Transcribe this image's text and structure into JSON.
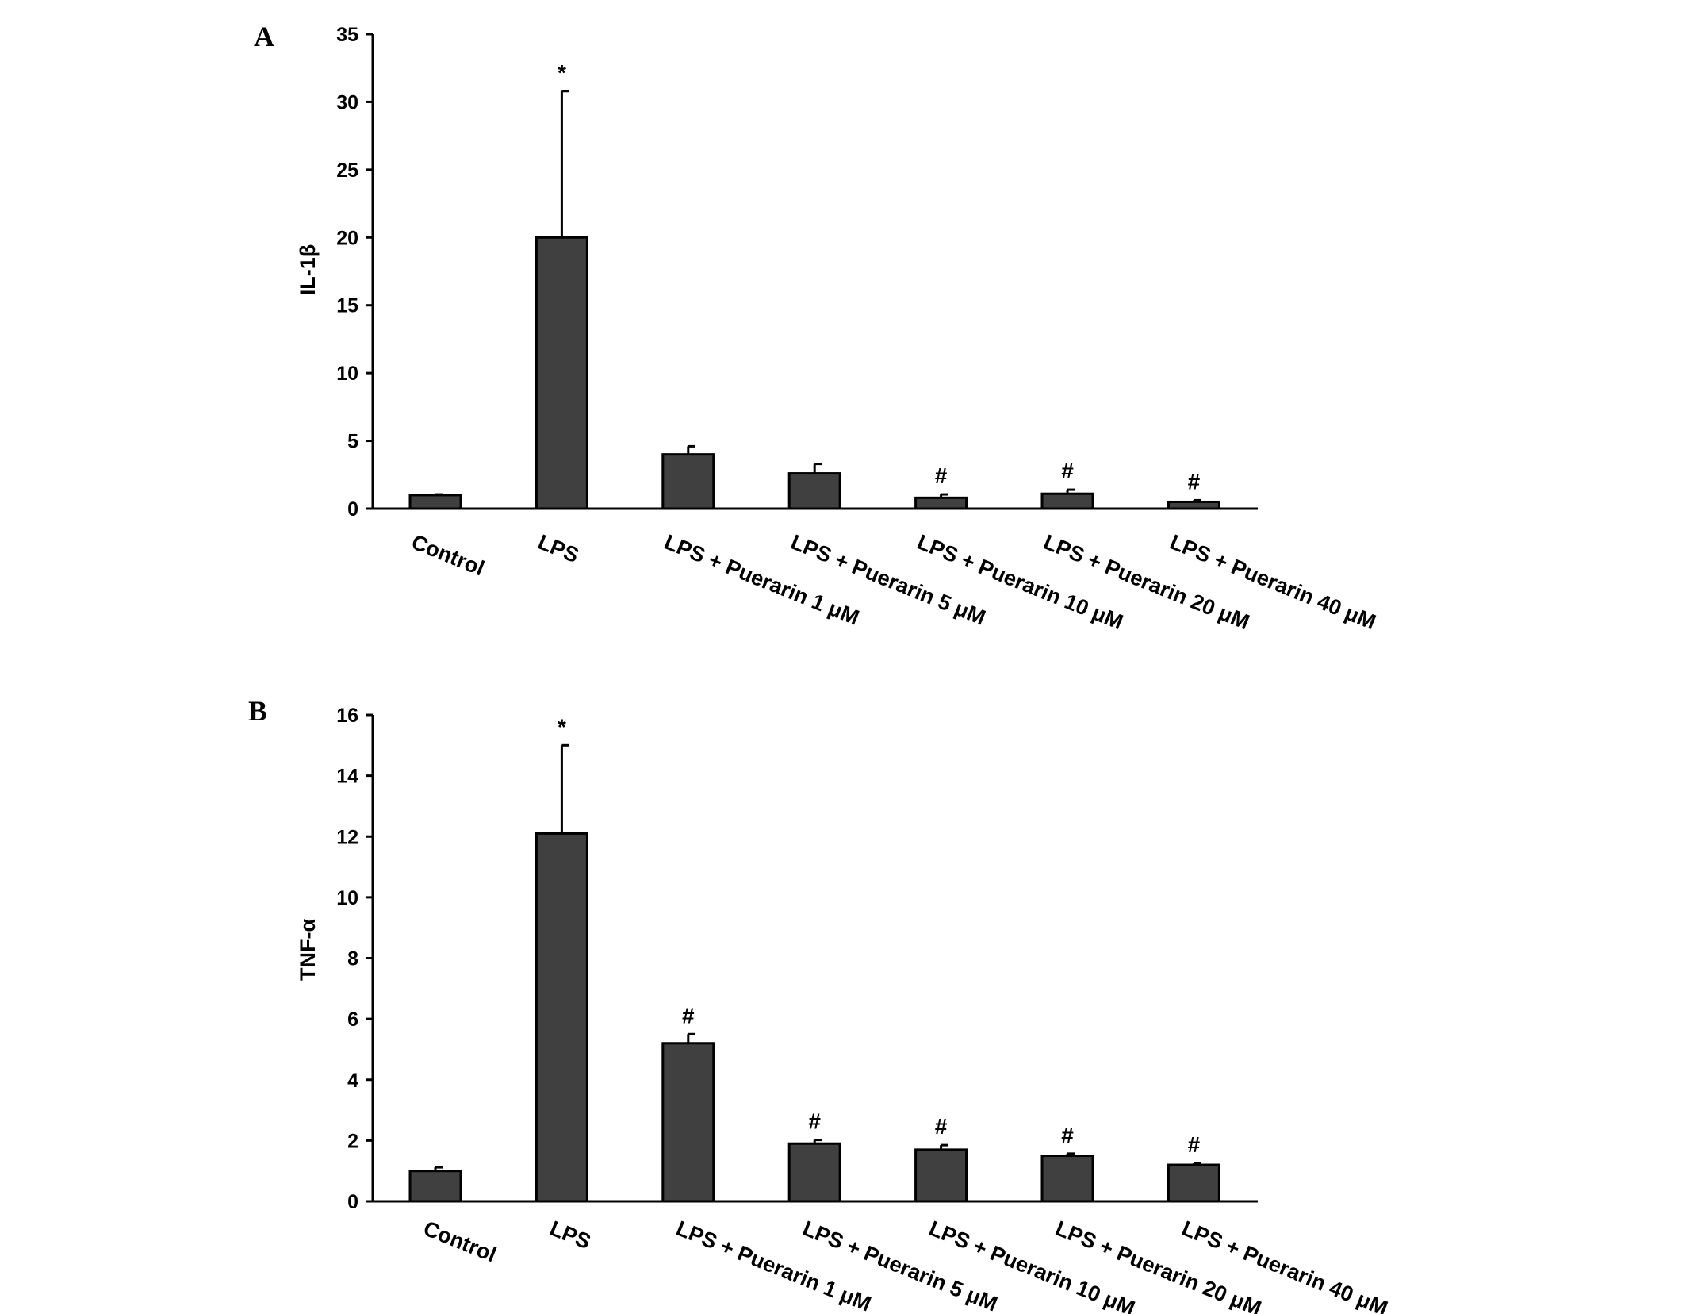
{
  "chart_data": [
    {
      "type": "bar",
      "panel": "A",
      "ylabel": "IL-1β",
      "xlabel": "",
      "title": "",
      "ylim": [
        0,
        35
      ],
      "yticks": [
        0,
        5,
        10,
        15,
        20,
        25,
        30,
        35
      ],
      "grid": false,
      "legend": "none",
      "categories": [
        "Control",
        "LPS",
        "LPS + Puerarin 1 μM",
        "LPS + Puerarin 5 μM",
        "LPS + Puerarin 10 μM",
        "LPS + Puerarin 20 μM",
        "LPS + Puerarin 40 μM"
      ],
      "values": [
        1.0,
        20.0,
        4.0,
        2.6,
        0.8,
        1.1,
        0.5
      ],
      "errors": [
        0.05,
        10.8,
        0.6,
        0.7,
        0.25,
        0.3,
        0.12
      ],
      "annotations": [
        "",
        "*",
        "",
        "",
        "#",
        "#",
        "#"
      ],
      "bar_color": "#404040"
    },
    {
      "type": "bar",
      "panel": "B",
      "ylabel": "TNF-α",
      "xlabel": "",
      "title": "",
      "ylim": [
        0,
        16
      ],
      "yticks": [
        0,
        2,
        4,
        6,
        8,
        10,
        12,
        14,
        16
      ],
      "grid": false,
      "legend": "none",
      "categories": [
        "Control",
        "LPS",
        "LPS + Puerarin 1 μM",
        "LPS + Puerarin 5 μM",
        "LPS + Puerarin 10 μM",
        "LPS + Puerarin 20 μM",
        "LPS + Puerarin 40 μM"
      ],
      "values": [
        1.0,
        12.1,
        5.2,
        1.9,
        1.7,
        1.5,
        1.2
      ],
      "errors": [
        0.12,
        2.9,
        0.3,
        0.12,
        0.15,
        0.07,
        0.05
      ],
      "annotations": [
        "",
        "*",
        "#",
        "#",
        "#",
        "#",
        "#"
      ],
      "bar_color": "#404040"
    }
  ]
}
